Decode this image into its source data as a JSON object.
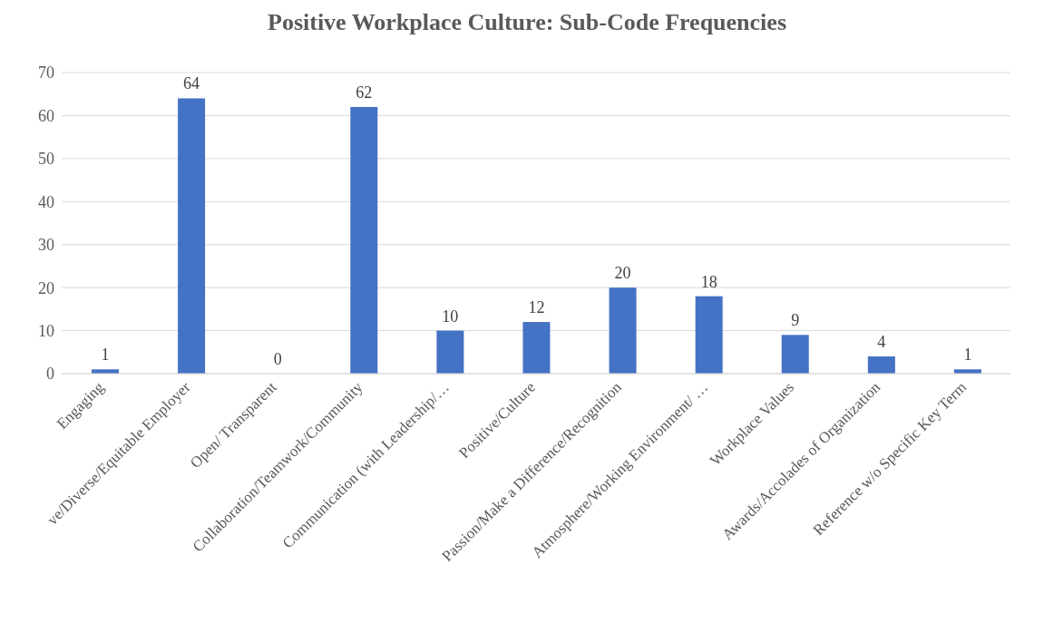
{
  "chart_data": {
    "type": "bar",
    "title": "Positive Workplace Culture: Sub-Code Frequencies",
    "categories": [
      "Engaging",
      "ve/Diverse/Equitable Employer",
      "Open/ Transparent",
      "Collaboration/Teamwork/Community",
      "Communication (with Leadership/…",
      "Positive/Culture",
      "Passion/Make a Difference/Recognition",
      "Atmosphere/Working Environment/ …",
      "Workplace Values",
      "Awards/Accolades of Organization",
      "Reference w/o Specific Key Term"
    ],
    "values": [
      1,
      64,
      0,
      62,
      10,
      12,
      20,
      18,
      9,
      4,
      1
    ],
    "color": "#4472c4",
    "ylim": [
      0,
      70
    ],
    "yticks": [
      0,
      10,
      20,
      30,
      40,
      50,
      60,
      70
    ],
    "grid": "y",
    "data_labels": true
  }
}
